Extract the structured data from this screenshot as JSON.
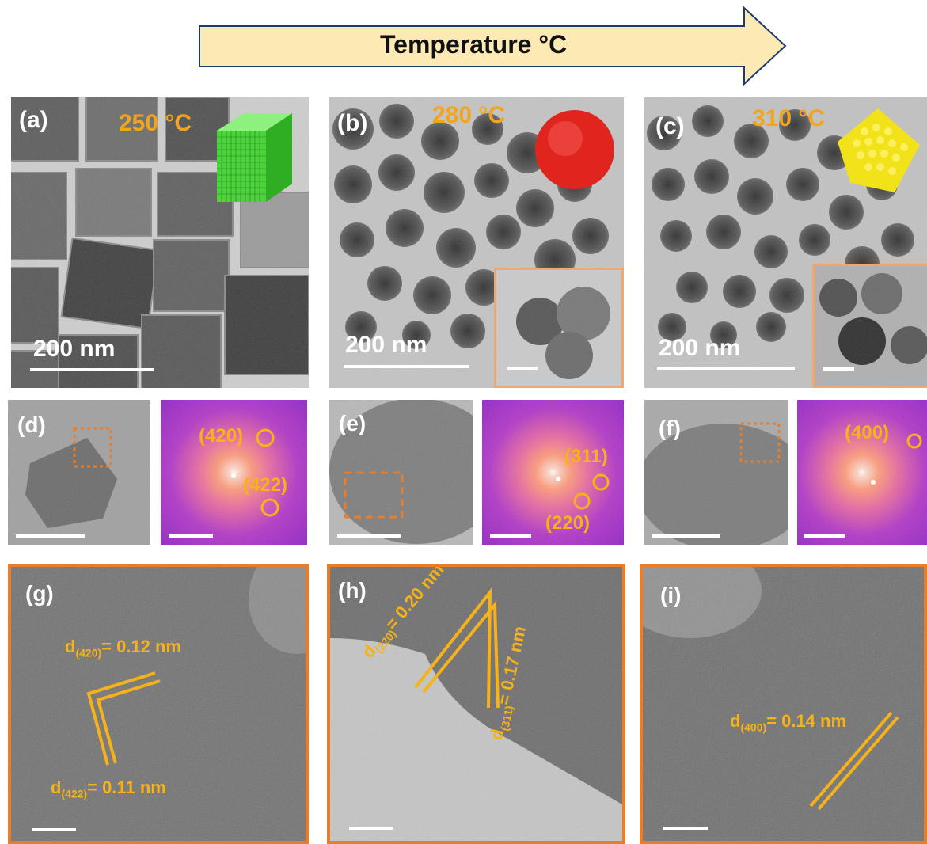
{
  "header": {
    "arrow_label": "Temperature",
    "arrow_unit": "°C"
  },
  "panels": {
    "a": {
      "label": "(a)",
      "temperature": "250 °C",
      "scale": "200 nm"
    },
    "b": {
      "label": "(b)",
      "temperature": "280 °C",
      "scale": "200 nm"
    },
    "c": {
      "label": "(c)",
      "temperature": "310 °C",
      "scale": "200 nm"
    },
    "d": {
      "label": "(d)",
      "fft_spots": [
        "(420)",
        "(422)"
      ]
    },
    "e": {
      "label": "(e)",
      "fft_spots": [
        "(311)",
        "(220)"
      ]
    },
    "f": {
      "label": "(f)",
      "fft_spots": [
        "(400)"
      ]
    },
    "g": {
      "label": "(g)",
      "spacing_1": {
        "prefix": "d",
        "index": "(420)",
        "value": "= 0.12 nm"
      },
      "spacing_2": {
        "prefix": "d",
        "index": "(422)",
        "value": "= 0.11 nm"
      }
    },
    "h": {
      "label": "(h)",
      "spacing_1": {
        "prefix": "d",
        "index": "(220)",
        "value": "= 0.20 nm"
      },
      "spacing_2": {
        "prefix": "d",
        "index": "(311)",
        "value": "= 0.17 nm"
      }
    },
    "i": {
      "label": "(i)",
      "spacing_1": {
        "prefix": "d",
        "index": "(400)",
        "value": "= 0.14 nm"
      }
    }
  },
  "colors": {
    "accent": "#f5b21a",
    "frame": "#e87d2a",
    "inset_frame": "#f0a873",
    "cube_model": "#4cd43c",
    "sphere_model": "#e0241e",
    "octa_model": "#f2e21a",
    "arrow_fill": "#fde9b4",
    "arrow_stroke": "#1d3b6e"
  }
}
